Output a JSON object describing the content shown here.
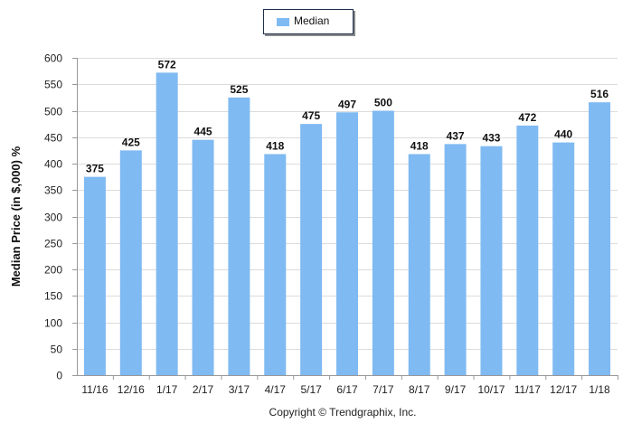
{
  "chart_data": {
    "type": "bar",
    "categories": [
      "11/16",
      "12/16",
      "1/17",
      "2/17",
      "3/17",
      "4/17",
      "5/17",
      "6/17",
      "7/17",
      "8/17",
      "9/17",
      "10/17",
      "11/17",
      "12/17",
      "1/18"
    ],
    "series": [
      {
        "name": "Median",
        "values": [
          375,
          425,
          572,
          445,
          525,
          418,
          475,
          497,
          500,
          418,
          437,
          433,
          472,
          440,
          516
        ]
      }
    ],
    "ylabel": "Median Price (in $,000) %",
    "xlabel": "",
    "ylim": [
      0,
      600
    ],
    "yticks": [
      0,
      50,
      100,
      150,
      200,
      250,
      300,
      350,
      400,
      450,
      500,
      550,
      600
    ],
    "grid": true,
    "legend_position": "top-center",
    "bar_color": "#7fbaf2",
    "footer": "Copyright © Trendgraphix, Inc."
  }
}
